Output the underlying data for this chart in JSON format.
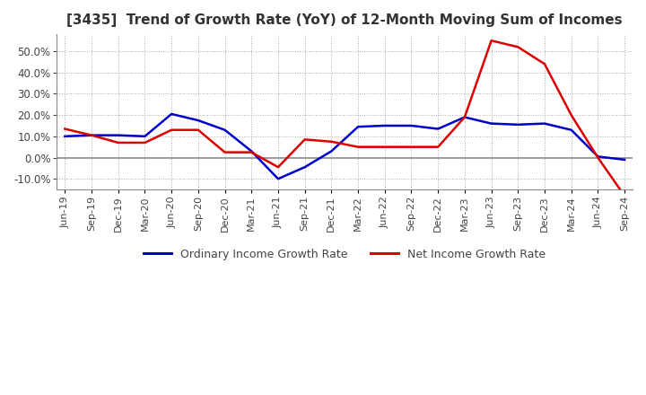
{
  "title": "[3435]  Trend of Growth Rate (YoY) of 12-Month Moving Sum of Incomes",
  "title_fontsize": 11,
  "ylim": [
    -15,
    58
  ],
  "yticks": [
    -10,
    0,
    10,
    20,
    30,
    40,
    50
  ],
  "background_color": "#ffffff",
  "grid_color": "#aaaaaa",
  "legend": [
    "Ordinary Income Growth Rate",
    "Net Income Growth Rate"
  ],
  "line_colors": [
    "#0000cc",
    "#dd0000"
  ],
  "x_labels": [
    "Jun-19",
    "Sep-19",
    "Dec-19",
    "Mar-20",
    "Jun-20",
    "Sep-20",
    "Dec-20",
    "Mar-21",
    "Jun-21",
    "Sep-21",
    "Dec-21",
    "Mar-22",
    "Jun-22",
    "Sep-22",
    "Dec-22",
    "Mar-23",
    "Jun-23",
    "Sep-23",
    "Dec-23",
    "Mar-24",
    "Jun-24",
    "Sep-24"
  ],
  "ordinary_income": [
    10.0,
    10.5,
    10.5,
    10.0,
    20.5,
    17.5,
    13.0,
    3.0,
    -10.0,
    -4.5,
    3.0,
    14.5,
    15.0,
    15.0,
    13.5,
    19.0,
    16.0,
    15.5,
    16.0,
    13.0,
    0.5,
    -1.0
  ],
  "net_income": [
    13.5,
    10.5,
    7.0,
    7.0,
    13.0,
    13.0,
    2.5,
    2.5,
    -4.5,
    8.5,
    7.5,
    5.0,
    5.0,
    5.0,
    5.0,
    19.0,
    55.0,
    52.0,
    44.0,
    20.0,
    0.0,
    -18.0
  ]
}
